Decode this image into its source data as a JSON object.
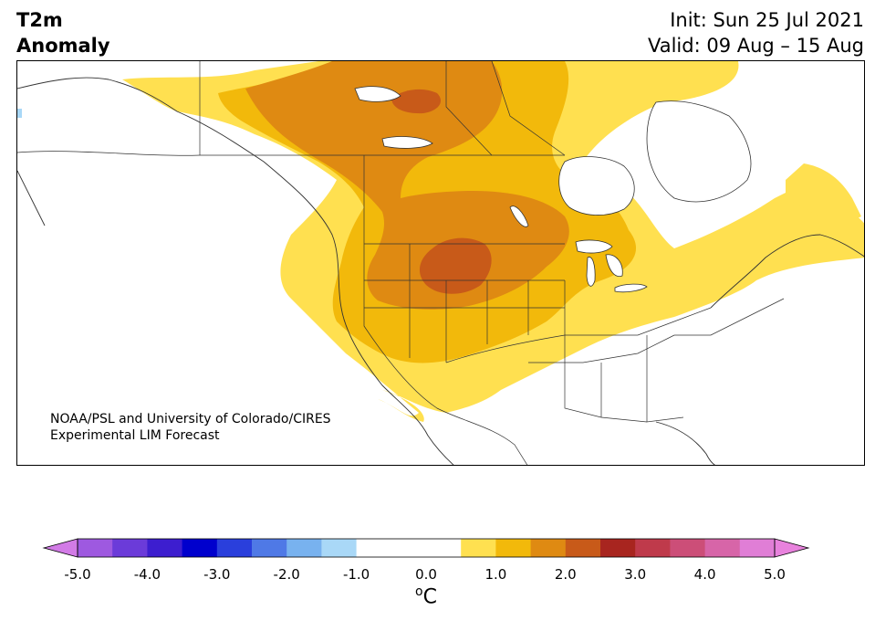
{
  "title": {
    "variable": "T2m",
    "subtitle": "Anomaly",
    "init": "Init: Sun 25 Jul 2021",
    "valid": "Valid: 09 Aug – 15 Aug"
  },
  "credit": {
    "line1": "NOAA/PSL and University of Colorado/CIRES",
    "line2": "Experimental LIM Forecast"
  },
  "colorbar": {
    "ticks": [
      "-5.0",
      "-4.0",
      "-3.0",
      "-2.0",
      "-1.0",
      "0.0",
      "1.0",
      "2.0",
      "3.0",
      "4.0",
      "5.0"
    ],
    "unit_sup": "o",
    "unit": "C",
    "levels": [
      -5,
      -4.5,
      -4,
      -3.5,
      -3,
      -2.5,
      -2,
      -1.5,
      -1,
      -0.5,
      0.5,
      1,
      1.5,
      2,
      2.5,
      3,
      3.5,
      4,
      4.5,
      5
    ],
    "colors": [
      "#9e59e0",
      "#6b3bd9",
      "#3d1ecf",
      "#0000cd",
      "#2a3fdc",
      "#4f79e6",
      "#78b2ef",
      "#a9d8f7",
      "#ffffff",
      "#ffffff",
      "#ffe050",
      "#f2b90b",
      "#df8a12",
      "#c85a19",
      "#a8251f",
      "#bf3a4b",
      "#cc4e78",
      "#d765a8",
      "#e07ed6"
    ],
    "extend_min_color": "#d27be6",
    "extend_max_color": "#e882dd"
  },
  "map_colors": {
    "anom_0_5_to_1": "#ffe050",
    "anom_1_to_1_5": "#f2b90b",
    "anom_1_5_to_2": "#df8a12",
    "anom_2_to_2_5": "#c85a19",
    "anom_neg_small": "#a9d8f7"
  }
}
